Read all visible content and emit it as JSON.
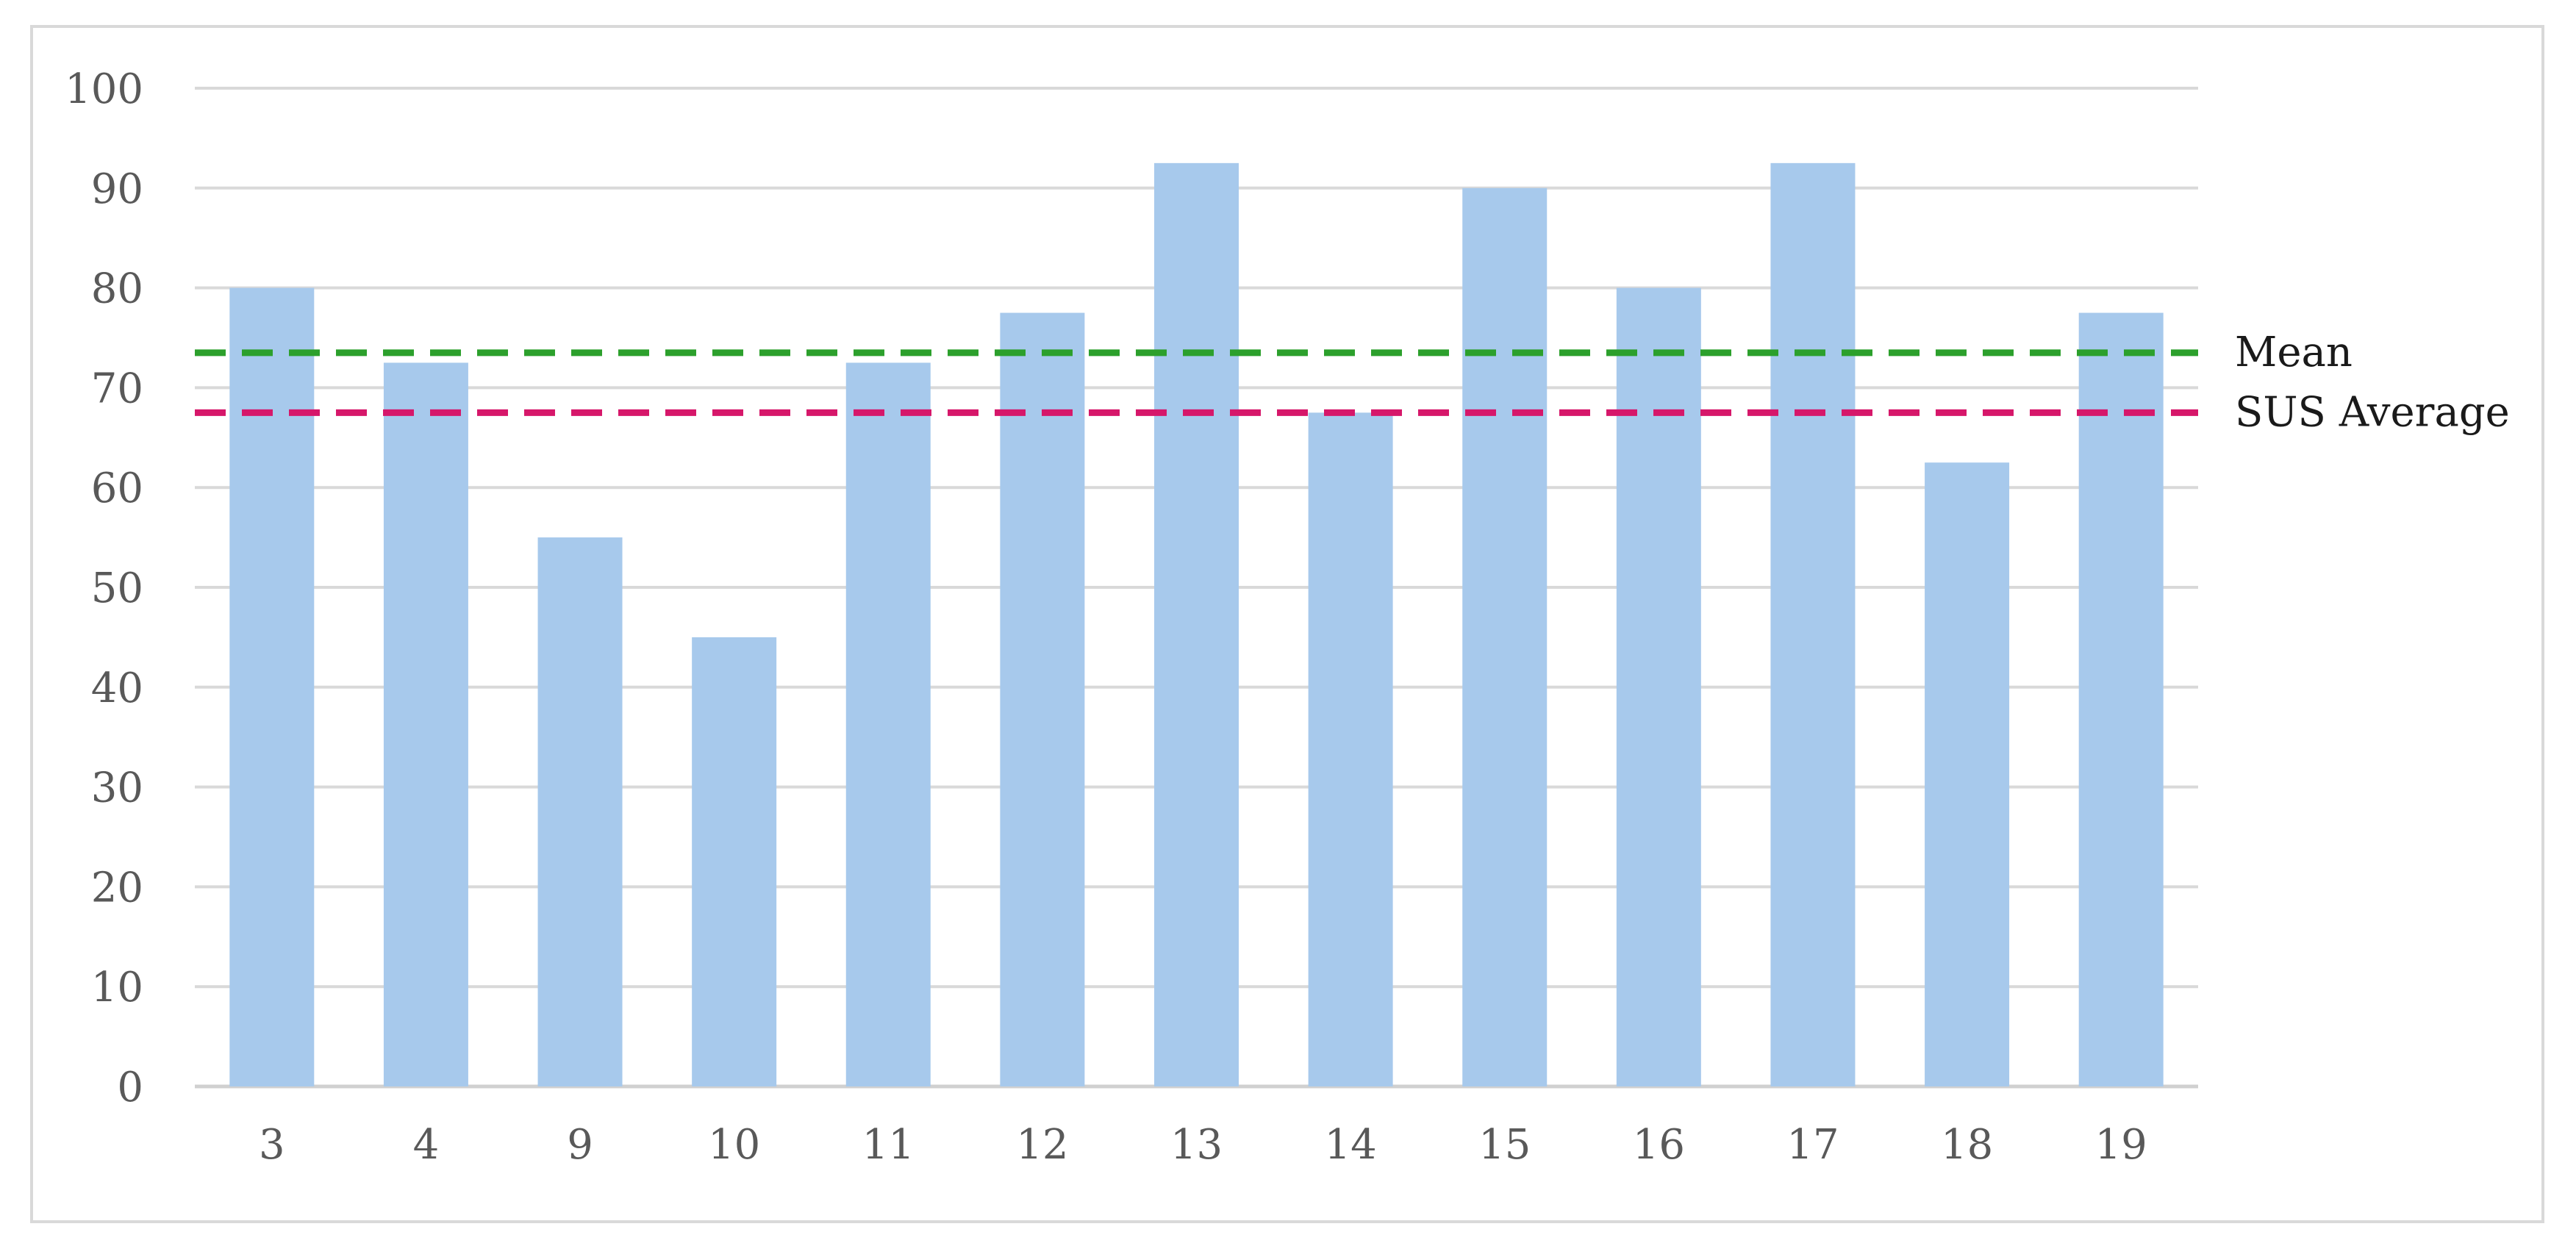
{
  "chart_data": {
    "type": "bar",
    "categories": [
      "3",
      "4",
      "9",
      "10",
      "11",
      "12",
      "13",
      "14",
      "15",
      "16",
      "17",
      "18",
      "19"
    ],
    "values": [
      80,
      72.5,
      55,
      45,
      72.5,
      77.5,
      92.5,
      67.5,
      90,
      80,
      92.5,
      62.5,
      77.5
    ],
    "ylim": [
      0,
      100
    ],
    "yticks": [
      0,
      10,
      20,
      30,
      40,
      50,
      60,
      70,
      80,
      90,
      100
    ],
    "grid": true,
    "bar_color": "#a7c9ec",
    "reference_lines": [
      {
        "label": "Mean",
        "value": 73.5,
        "color": "#2ca02c",
        "style": "dashed"
      },
      {
        "label": "SUS Average",
        "value": 67.5,
        "color": "#d6176a",
        "style": "dashed"
      }
    ]
  }
}
